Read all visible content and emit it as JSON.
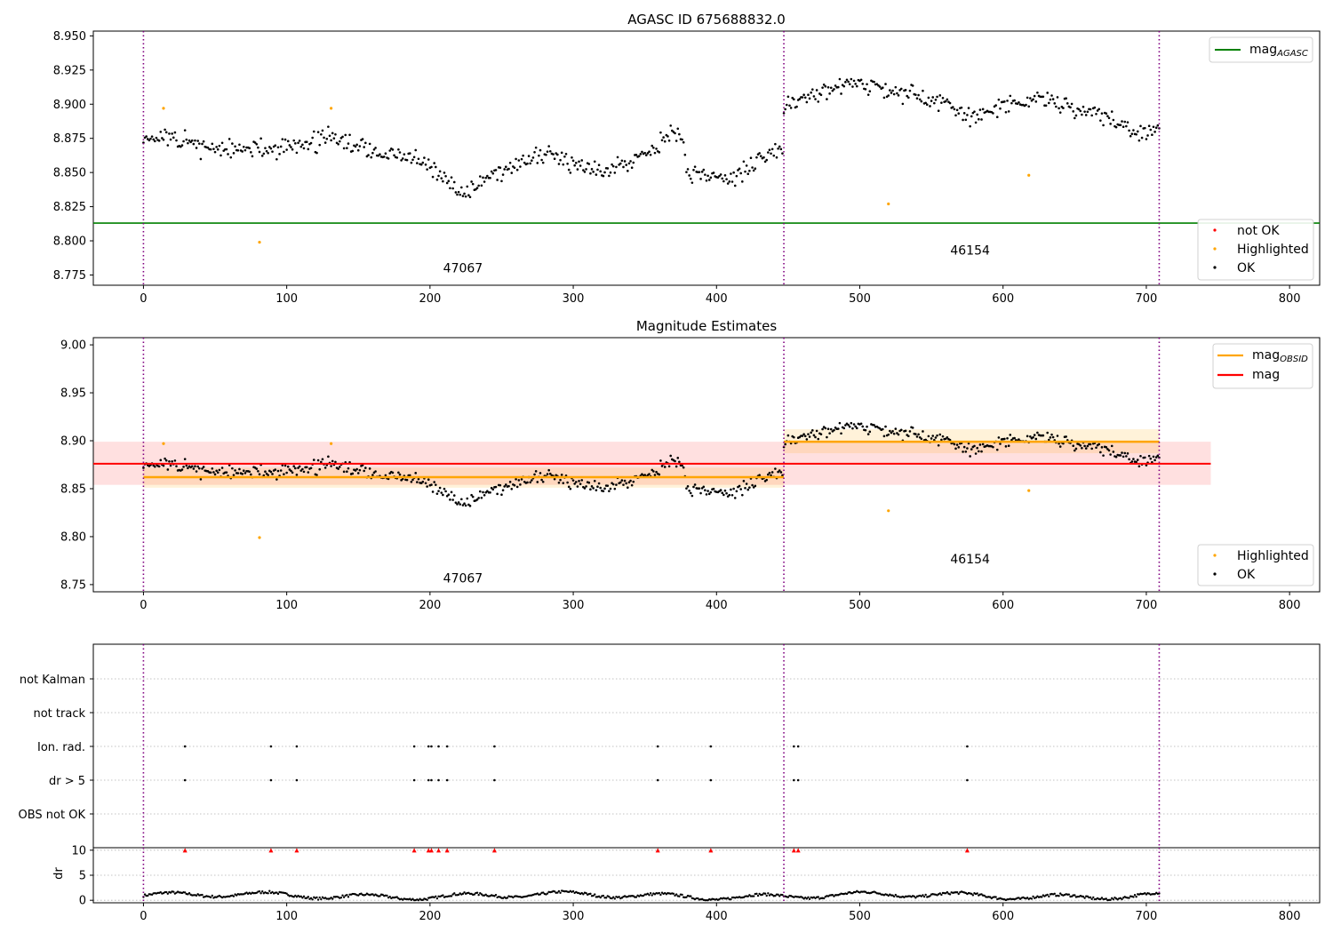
{
  "chart_data": [
    {
      "id": "top",
      "type": "scatter",
      "title": "AGASC ID 675688832.0",
      "xlim": [
        -35,
        821
      ],
      "ylim": [
        8.7675,
        8.9535
      ],
      "xticks": [
        0,
        100,
        200,
        300,
        400,
        500,
        600,
        700,
        800
      ],
      "yticks": [
        "8.775",
        "8.800",
        "8.825",
        "8.850",
        "8.875",
        "8.900",
        "8.925",
        "8.950"
      ],
      "boundaries": [
        0,
        447,
        709
      ],
      "obsids": [
        {
          "label": "47067",
          "x": 223,
          "y": 8.777
        },
        {
          "label": "46154",
          "x": 577,
          "y": 8.79
        }
      ],
      "mag_agasc": 8.813,
      "highlighted": [
        [
          14,
          8.897
        ],
        [
          81,
          8.799
        ],
        [
          131,
          8.897
        ],
        [
          520,
          8.827
        ],
        [
          618,
          8.848
        ]
      ],
      "ok_segments": [
        {
          "x_start": 0,
          "x_end": 446,
          "step": 1,
          "knots": [
            [
              0,
              8.877
            ],
            [
              30,
              8.872
            ],
            [
              60,
              8.866
            ],
            [
              100,
              8.868
            ],
            [
              130,
              8.876
            ],
            [
              160,
              8.865
            ],
            [
              190,
              8.86
            ],
            [
              210,
              8.845
            ],
            [
              225,
              8.834
            ],
            [
              240,
              8.848
            ],
            [
              265,
              8.857
            ],
            [
              285,
              8.863
            ],
            [
              300,
              8.858
            ],
            [
              320,
              8.852
            ],
            [
              340,
              8.858
            ],
            [
              360,
              8.872
            ],
            [
              375,
              8.88
            ],
            [
              380,
              8.85
            ],
            [
              410,
              8.845
            ],
            [
              430,
              8.86
            ],
            [
              446,
              8.867
            ]
          ],
          "noise": 0.007,
          "seed": 11
        },
        {
          "x_start": 447,
          "x_end": 709,
          "step": 1,
          "knots": [
            [
              447,
              8.9
            ],
            [
              470,
              8.907
            ],
            [
              490,
              8.915
            ],
            [
              520,
              8.91
            ],
            [
              545,
              8.905
            ],
            [
              560,
              8.9
            ],
            [
              580,
              8.89
            ],
            [
              600,
              8.898
            ],
            [
              625,
              8.905
            ],
            [
              640,
              8.9
            ],
            [
              660,
              8.893
            ],
            [
              680,
              8.888
            ],
            [
              695,
              8.878
            ],
            [
              709,
              8.882
            ]
          ],
          "noise": 0.006,
          "seed": 23
        }
      ],
      "legend_top": [
        {
          "label": "mag",
          "sub": "AGASC",
          "color": "#008000"
        }
      ],
      "legend_bottom": [
        {
          "label": "not OK",
          "color": "#ff0000"
        },
        {
          "label": "Highlighted",
          "color": "#ffa500"
        },
        {
          "label": "OK",
          "color": "#000000"
        }
      ]
    },
    {
      "id": "mid",
      "type": "scatter",
      "title": "Magnitude Estimates",
      "xlim": [
        -35,
        821
      ],
      "ylim": [
        8.7425,
        9.0075
      ],
      "xticks": [
        0,
        100,
        200,
        300,
        400,
        500,
        600,
        700,
        800
      ],
      "yticks": [
        "8.75",
        "8.80",
        "8.85",
        "8.90",
        "8.95",
        "9.00"
      ],
      "boundaries": [
        0,
        447,
        709
      ],
      "obsids": [
        {
          "label": "47067",
          "x": 223,
          "y": 8.752
        },
        {
          "label": "46154",
          "x": 577,
          "y": 8.772
        }
      ],
      "mag": {
        "value": 8.876,
        "low": 8.854,
        "high": 8.899,
        "x_end": 745,
        "color": "#ff0000"
      },
      "mag_obsid": [
        {
          "x0": 0,
          "x1": 447,
          "value": 8.862,
          "low": 8.851,
          "high": 8.872
        },
        {
          "x0": 447,
          "x1": 709,
          "value": 8.899,
          "low": 8.887,
          "high": 8.912
        }
      ],
      "legend_top": [
        {
          "label": "mag",
          "sub": "OBSID",
          "color": "#ffa500"
        },
        {
          "label": "mag",
          "sub": "",
          "color": "#ff0000"
        }
      ],
      "legend_bottom": [
        {
          "label": "Highlighted",
          "color": "#ffa500"
        },
        {
          "label": "OK",
          "color": "#000000"
        }
      ]
    },
    {
      "id": "flags",
      "type": "scatter",
      "categories": [
        "OBS not OK",
        "dr > 5",
        "Ion. rad.",
        "not track",
        "not Kalman"
      ],
      "xlim": [
        -35,
        821
      ],
      "boundaries": [
        0,
        447,
        709
      ],
      "points": {
        "dr > 5": [
          29,
          89,
          107,
          189,
          199,
          201,
          206,
          212,
          245,
          359,
          396,
          454,
          457,
          575
        ],
        "Ion. rad.": [
          29,
          89,
          107,
          189,
          199,
          201,
          206,
          212,
          245,
          359,
          396,
          454,
          457,
          575
        ]
      }
    },
    {
      "id": "dr",
      "type": "scatter",
      "ylabel": "dr",
      "xlim": [
        -35,
        821
      ],
      "ylim": [
        -0.5,
        10.5
      ],
      "xticks": [
        0,
        100,
        200,
        300,
        400,
        500,
        600,
        700,
        800
      ],
      "yticks": [
        "0",
        "5",
        "10"
      ],
      "boundaries": [
        0,
        447,
        709
      ],
      "flagged_x": [
        29,
        89,
        107,
        189,
        199,
        201,
        206,
        212,
        245,
        359,
        396,
        454,
        457,
        575
      ],
      "flag_value": 10
    }
  ]
}
